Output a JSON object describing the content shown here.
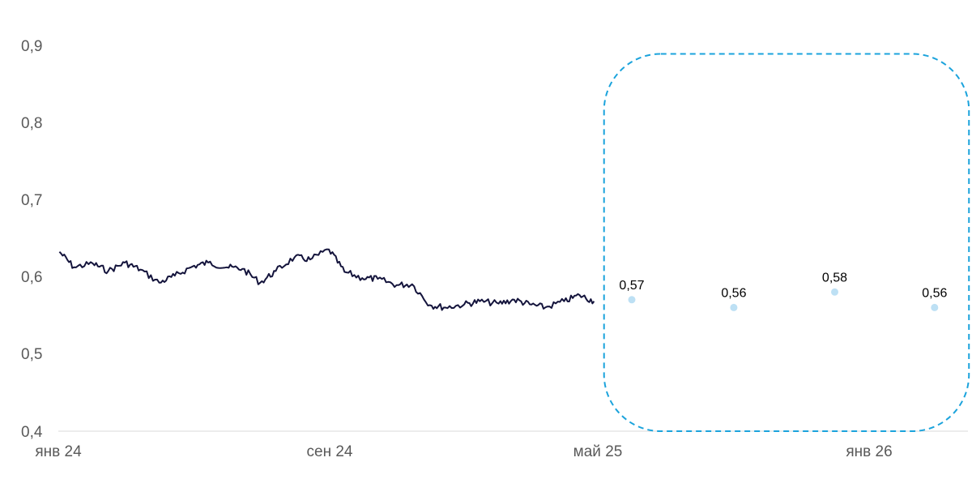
{
  "chart_data": {
    "type": "line",
    "title": "",
    "xlabel": "",
    "ylabel": "",
    "ylim": [
      0.4,
      0.9
    ],
    "yticks": [
      "0,9",
      "0,8",
      "0,7",
      "0,6",
      "0,5",
      "0,4"
    ],
    "xticks": [
      "янв 24",
      "сен 24",
      "май 25",
      "янв 26"
    ],
    "grid": false,
    "legend": "none",
    "series": [
      {
        "kind": "line",
        "color": "#14143c",
        "x": [
          "2024-01-02",
          "2024-01-15",
          "2024-02-01",
          "2024-02-15",
          "2024-03-01",
          "2024-03-15",
          "2024-04-01",
          "2024-04-15",
          "2024-05-01",
          "2024-05-15",
          "2024-06-01",
          "2024-06-15",
          "2024-07-01",
          "2024-07-15",
          "2024-08-01",
          "2024-08-15",
          "2024-09-01",
          "2024-09-15",
          "2024-10-01",
          "2024-10-15",
          "2024-11-01",
          "2024-11-15",
          "2024-12-01",
          "2024-12-15",
          "2025-01-01",
          "2025-01-15",
          "2025-02-01",
          "2025-02-15",
          "2025-03-01",
          "2025-03-15",
          "2025-04-01",
          "2025-04-15",
          "2025-04-28"
        ],
        "values": [
          0.632,
          0.612,
          0.617,
          0.607,
          0.618,
          0.609,
          0.592,
          0.601,
          0.613,
          0.618,
          0.612,
          0.61,
          0.592,
          0.607,
          0.625,
          0.622,
          0.635,
          0.606,
          0.598,
          0.597,
          0.589,
          0.59,
          0.563,
          0.56,
          0.564,
          0.568,
          0.565,
          0.57,
          0.564,
          0.56,
          0.568,
          0.576,
          0.568
        ]
      },
      {
        "kind": "points",
        "color": "#bde0f4",
        "x": [
          "2025-06-01",
          "2025-09-01",
          "2025-12-01",
          "2026-03-01"
        ],
        "values": [
          0.57,
          0.56,
          0.58,
          0.56
        ],
        "labels": [
          "0,57",
          "0,56",
          "0,58",
          "0,56"
        ]
      }
    ],
    "annotation": {
      "shape": "dashed-rounded-rectangle",
      "color": "#1ba3dc",
      "x_range": [
        "2025-05-07",
        "2026-04-01"
      ],
      "y_range": [
        0.4,
        0.888
      ]
    }
  }
}
